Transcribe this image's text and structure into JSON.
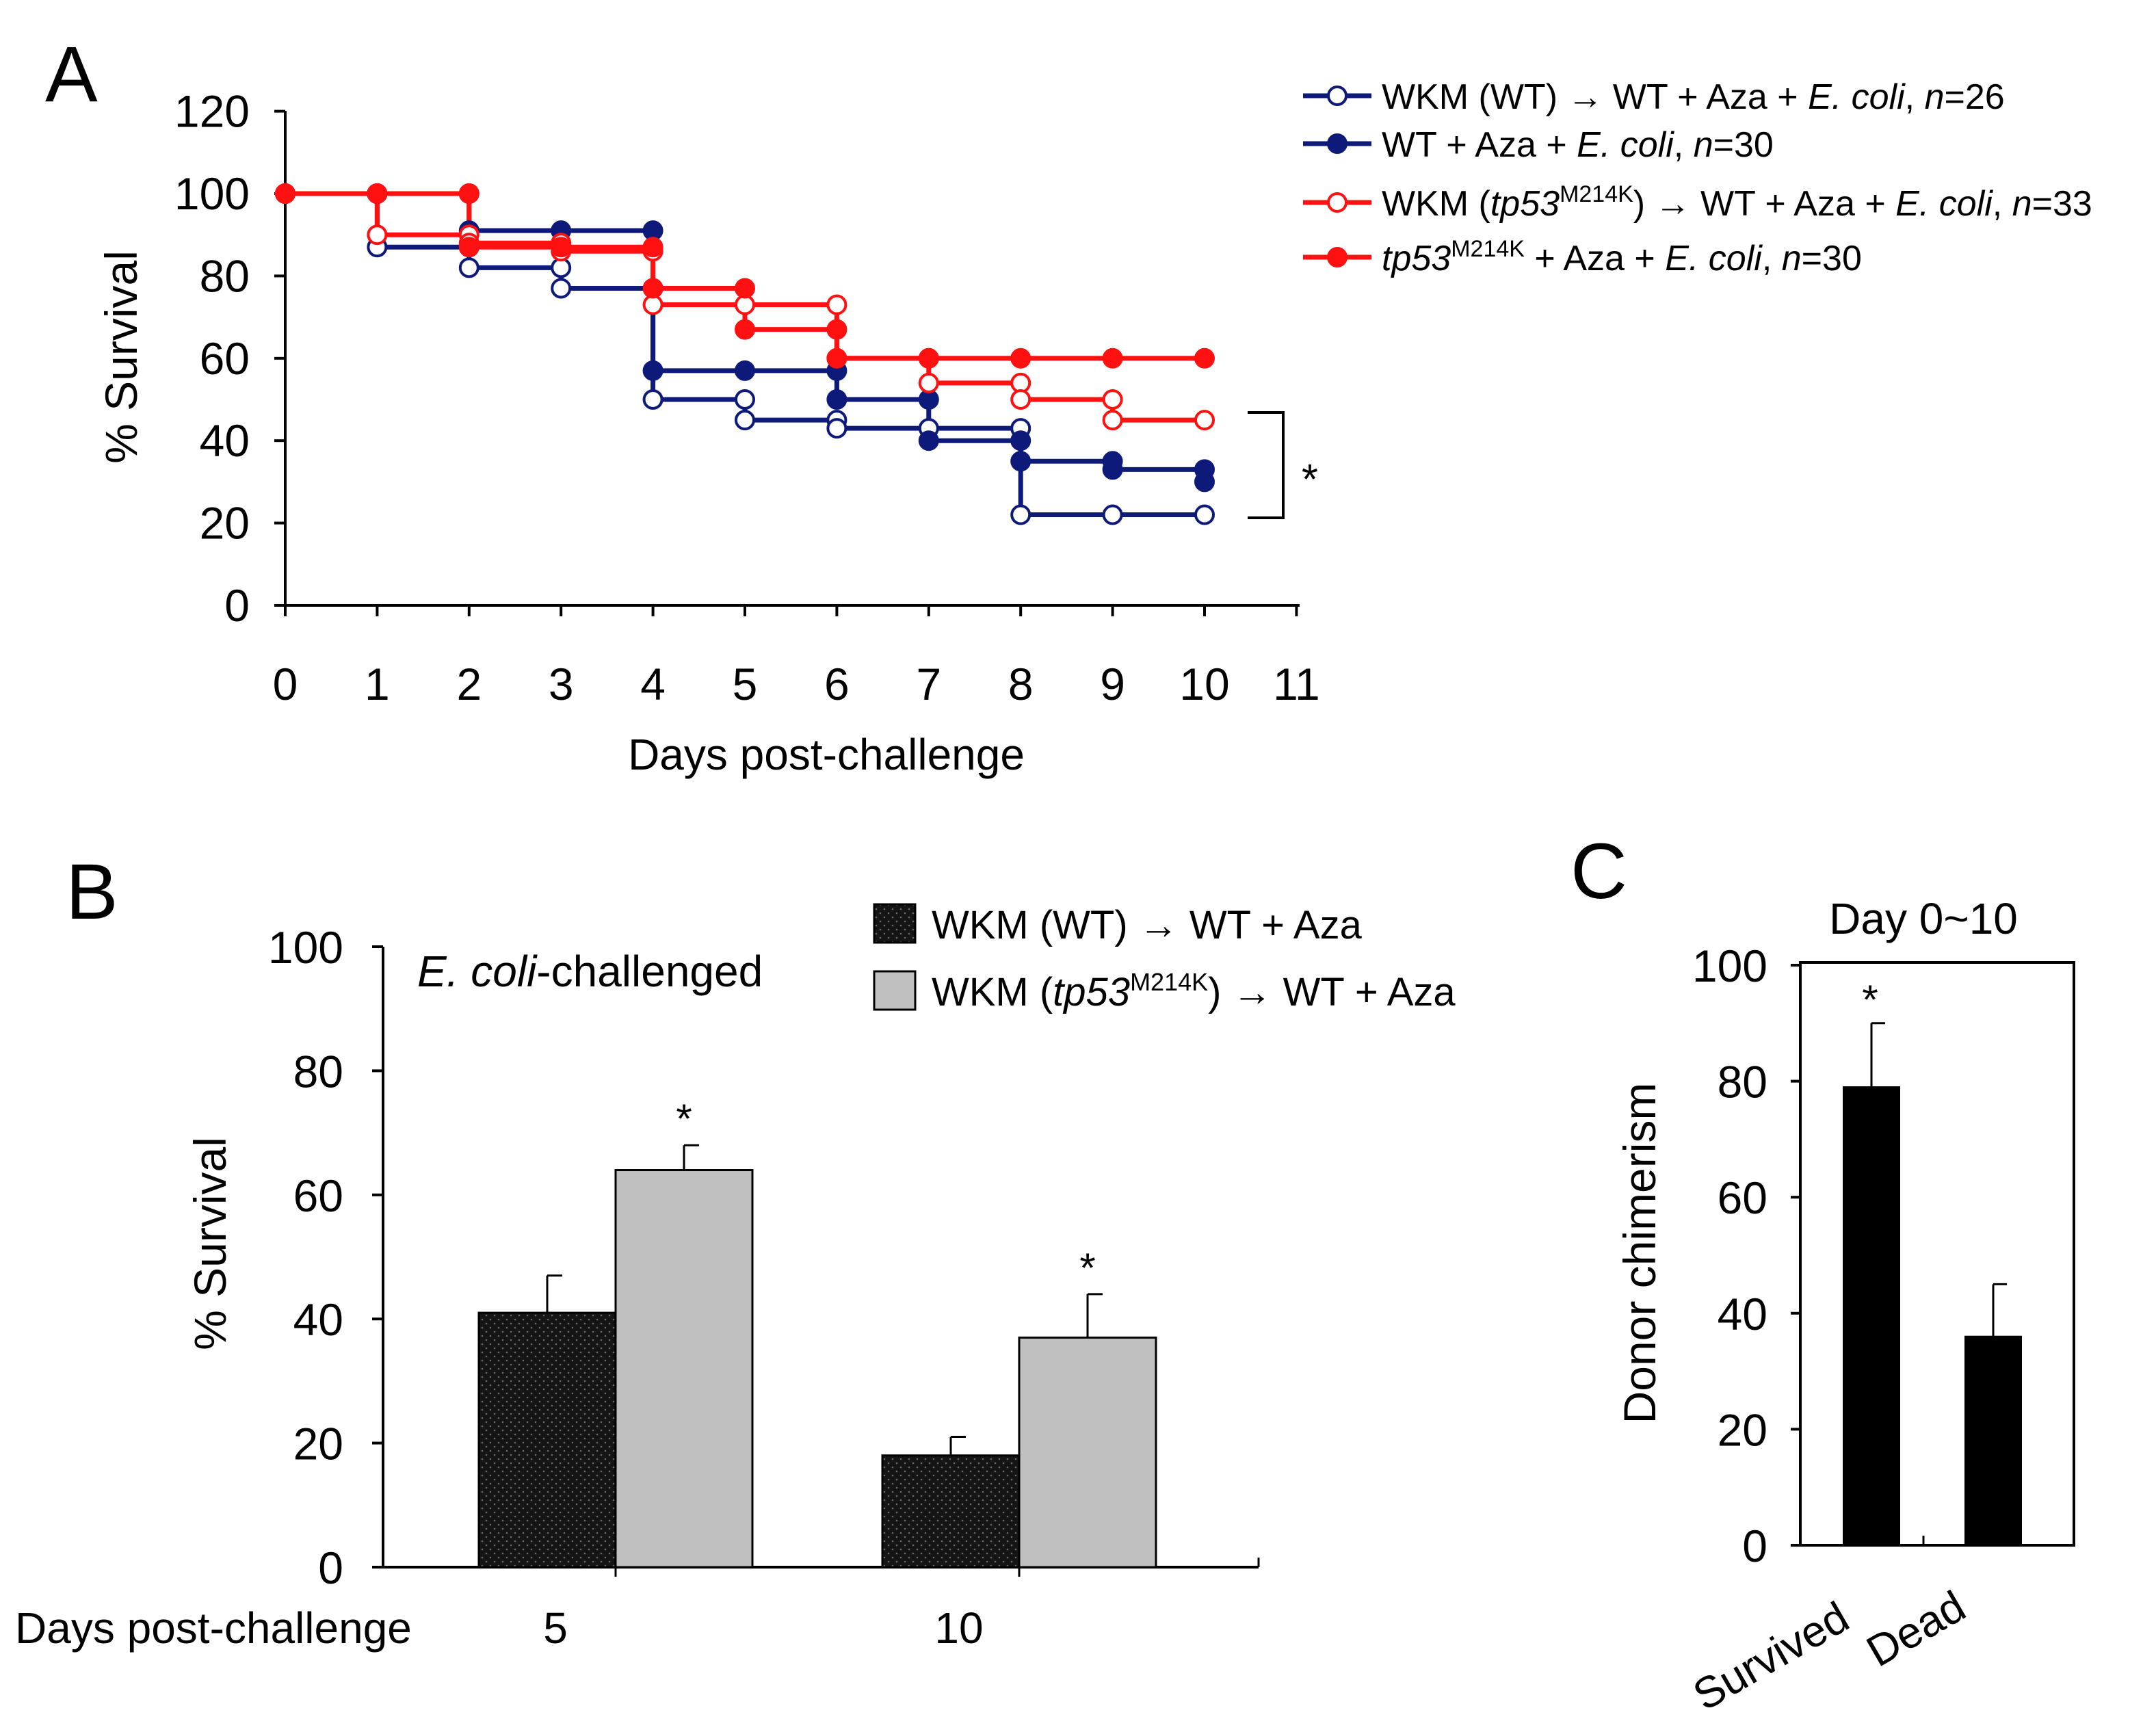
{
  "colors": {
    "wt": "#0d1a7a",
    "tp53": "#ff1111",
    "bar_wt": "#151515",
    "bar_tp53": "#c0c0c0",
    "bar_c": "#000000"
  },
  "chart_data": [
    {
      "type": "line",
      "panel": "A",
      "xlabel": "Days post-challenge",
      "ylabel": "% Survival",
      "xlim": [
        0,
        11
      ],
      "ylim": [
        0,
        120
      ],
      "xticks": [
        "0",
        "1",
        "2",
        "3",
        "4",
        "5",
        "6",
        "7",
        "8",
        "9",
        "10",
        "11"
      ],
      "yticks": [
        "0",
        "20",
        "40",
        "60",
        "80",
        "100",
        "120"
      ],
      "significance": "*",
      "series": [
        {
          "name": "WKM (WT) → WT + Aza + E. coli, n=26",
          "prefix": "WKM (WT) → WT + Aza + ",
          "species": "E. coli",
          "n_label": "n",
          "n_value": "=26",
          "filled": false,
          "color_key": "wt",
          "x": [
            0,
            1,
            2,
            3,
            4,
            5,
            6,
            7,
            8,
            9,
            10
          ],
          "y": [
            100,
            87,
            82,
            77,
            50,
            45,
            43,
            43,
            22,
            22,
            22
          ]
        },
        {
          "name": "WT + Aza + E. coli, n=30",
          "prefix": "WT + Aza + ",
          "species": "E. coli",
          "n_label": "n",
          "n_value": "=30",
          "filled": true,
          "color_key": "wt",
          "x": [
            0,
            1,
            2,
            3,
            4,
            5,
            6,
            7,
            8,
            9,
            10
          ],
          "y": [
            100,
            100,
            91,
            91,
            57,
            57,
            50,
            40,
            35,
            33,
            30
          ]
        },
        {
          "name": "WKM (tp53M214K) → WT + Aza + E. coli, n=33",
          "prefix": "WKM (",
          "gene": "tp53",
          "allele": "M214K",
          "mid": ") → WT + Aza + ",
          "species": "E. coli",
          "n_label": "n",
          "n_value": "=33",
          "filled": false,
          "color_key": "tp53",
          "x": [
            0,
            1,
            2,
            3,
            4,
            5,
            6,
            7,
            8,
            9,
            10
          ],
          "y": [
            100,
            90,
            88,
            86,
            73,
            73,
            60,
            54,
            50,
            45,
            45
          ]
        },
        {
          "name": "tp53M214K + Aza + E. coli, n=30",
          "gene": "tp53",
          "allele": "M214K",
          "mid": " + Aza + ",
          "species": "E. coli",
          "n_label": "n",
          "n_value": "=30",
          "filled": true,
          "color_key": "tp53",
          "x": [
            0,
            1,
            2,
            3,
            4,
            5,
            6,
            7,
            8,
            9,
            10
          ],
          "y": [
            100,
            100,
            87,
            87,
            77,
            67,
            60,
            60,
            60,
            60,
            60
          ]
        }
      ]
    },
    {
      "type": "bar",
      "panel": "B",
      "title": "-challenged",
      "title_species": "E. coli",
      "ylabel": "% Survival",
      "xlabel": "Days post-challenge",
      "categories": [
        "5",
        "10"
      ],
      "ylim": [
        0,
        100
      ],
      "yticks": [
        "0",
        "20",
        "40",
        "60",
        "80",
        "100"
      ],
      "series": [
        {
          "name": "WKM (WT) → WT + Aza",
          "values": [
            41,
            18
          ],
          "errors": [
            6,
            3
          ],
          "significance": [
            "",
            ""
          ],
          "color_key": "bar_wt"
        },
        {
          "name": "WKM (tp53M214K) → WT + Aza",
          "prefix": "WKM (",
          "gene": "tp53",
          "allele": "M214K",
          "suffix": ") → WT + Aza",
          "values": [
            64,
            37
          ],
          "errors": [
            4,
            7
          ],
          "significance": [
            "*",
            "*"
          ],
          "color_key": "bar_tp53"
        }
      ]
    },
    {
      "type": "bar",
      "panel": "C",
      "title": "Day 0~10",
      "ylabel": "Donor chimerism",
      "categories": [
        "Survived",
        "Dead"
      ],
      "values": [
        79,
        36
      ],
      "errors": [
        11,
        9
      ],
      "significance": [
        "*",
        ""
      ],
      "ylim": [
        0,
        100
      ],
      "yticks": [
        "0",
        "20",
        "40",
        "60",
        "80",
        "100"
      ]
    }
  ]
}
